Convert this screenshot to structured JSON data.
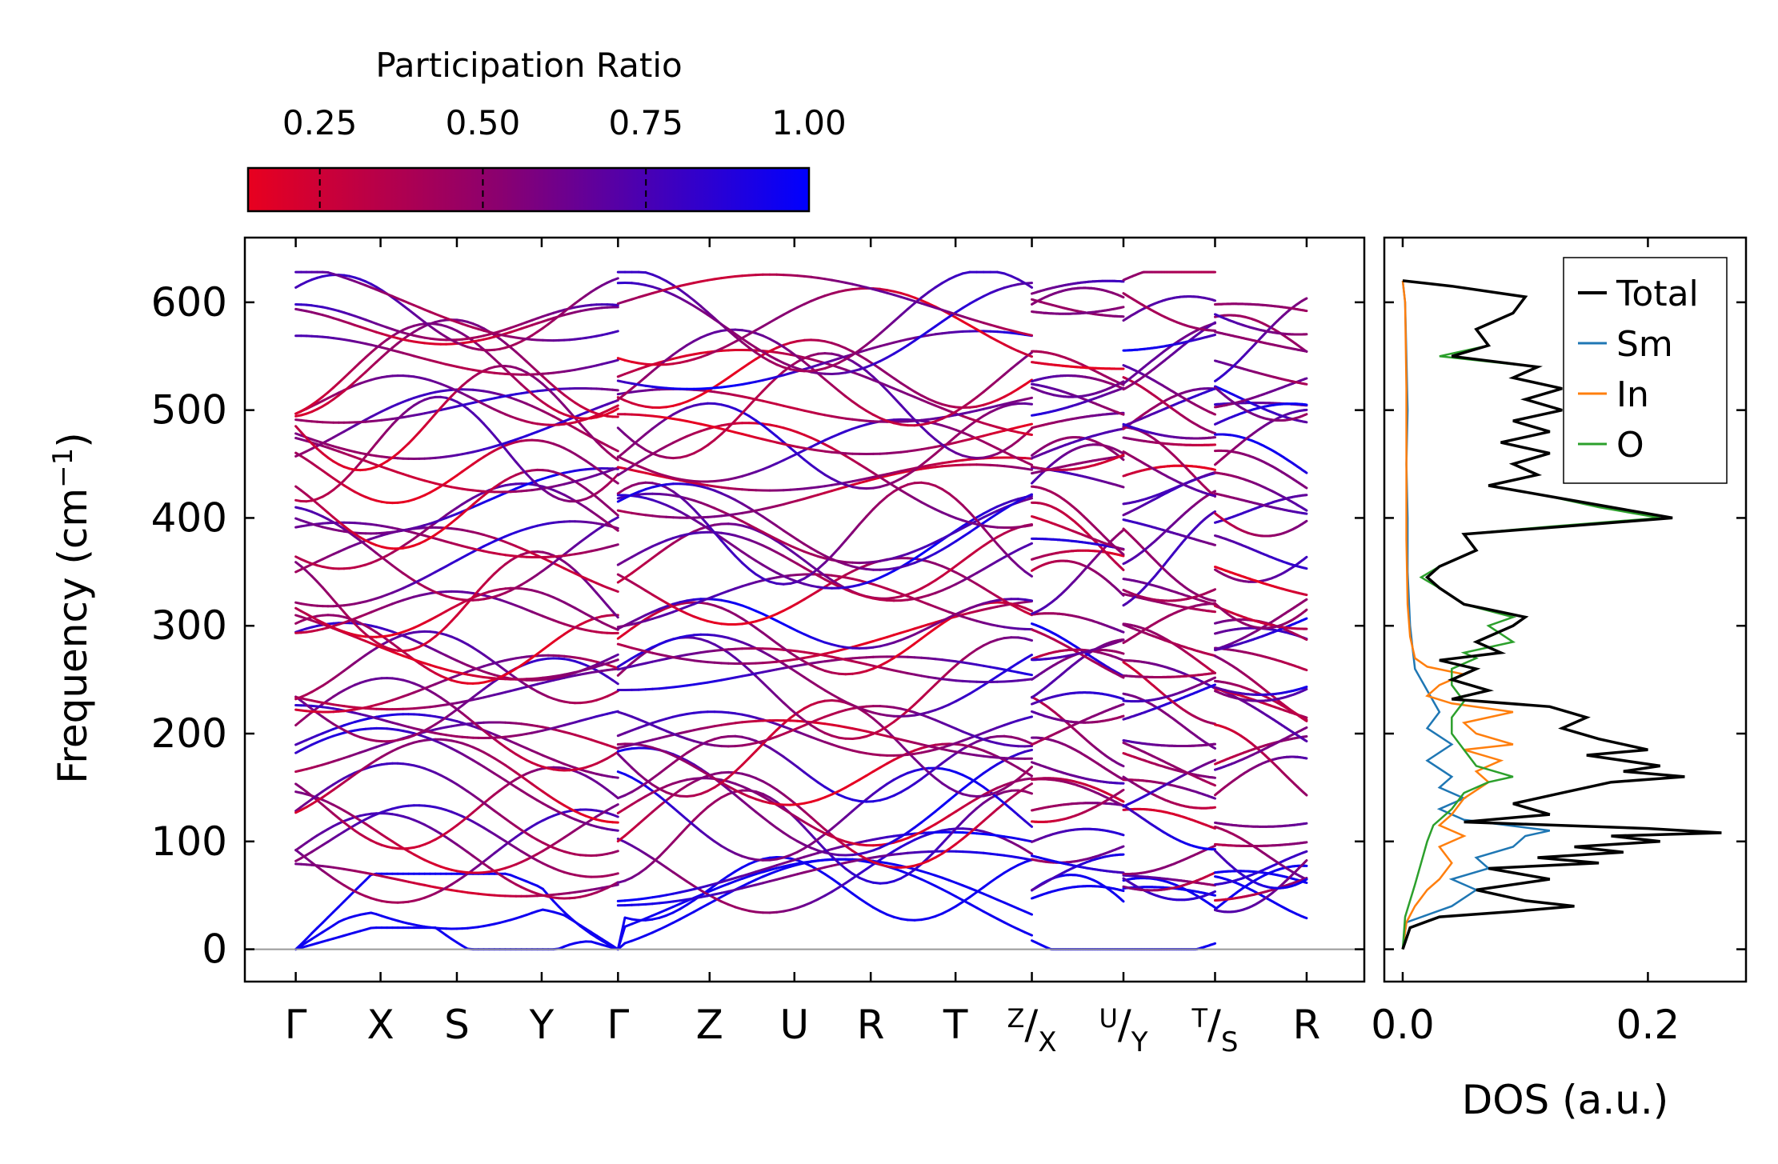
{
  "chart_data": [
    {
      "type": "line",
      "name": "phonon-band-structure",
      "ylabel_main": "Frequency (cm",
      "ylabel_sup": "−1",
      "ylabel_close": ")",
      "ylim": [
        -30,
        660
      ],
      "yticks": [
        0,
        100,
        200,
        300,
        400,
        500,
        600
      ],
      "kpath": [
        {
          "label": "Γ",
          "pos": 0.0
        },
        {
          "label": "X",
          "pos": 0.5
        },
        {
          "label": "S",
          "pos": 0.95
        },
        {
          "label": "Y",
          "pos": 1.45
        },
        {
          "label": "Γ",
          "pos": 1.9
        },
        {
          "label": "Z",
          "pos": 2.44
        },
        {
          "label": "U",
          "pos": 2.94
        },
        {
          "label": "R",
          "pos": 3.39
        },
        {
          "label": "T",
          "pos": 3.89
        },
        {
          "label": "Z",
          "label2": "X",
          "pos": 4.34
        },
        {
          "label": "U",
          "label2": "Y",
          "pos": 4.88
        },
        {
          "label": "T",
          "label2": "S",
          "pos": 5.42
        },
        {
          "label": "R",
          "pos": 5.96
        }
      ],
      "segment_breaks": [
        1.9,
        4.34,
        4.88,
        5.42
      ],
      "xlim": [
        -0.3,
        6.3
      ],
      "band_count": 48,
      "colorbar": {
        "title": "Participation Ratio",
        "ticks": [
          "0.25",
          "0.50",
          "0.75",
          "1.00"
        ],
        "tick_values": [
          0.25,
          0.5,
          0.75,
          1.0
        ],
        "range": [
          0.14,
          1.0
        ],
        "color_low": "#e8001f",
        "color_mid": "#8a0070",
        "color_high": "#0000ff"
      }
    },
    {
      "type": "line",
      "name": "density-of-states",
      "xlabel": "DOS (a.u.)",
      "xticks": [
        "0.0",
        "0.2"
      ],
      "xtick_values": [
        0.0,
        0.2
      ],
      "xlim": [
        -0.015,
        0.28
      ],
      "ylim": [
        -30,
        660
      ],
      "legend_position": "top-right",
      "series": [
        {
          "name": "Total",
          "color": "#000000",
          "points": [
            [
              0,
              0.0
            ],
            [
              20,
              0.006
            ],
            [
              30,
              0.03
            ],
            [
              35,
              0.09
            ],
            [
              40,
              0.14
            ],
            [
              45,
              0.1
            ],
            [
              55,
              0.06
            ],
            [
              65,
              0.12
            ],
            [
              75,
              0.07
            ],
            [
              80,
              0.16
            ],
            [
              85,
              0.11
            ],
            [
              90,
              0.18
            ],
            [
              95,
              0.14
            ],
            [
              100,
              0.21
            ],
            [
              105,
              0.17
            ],
            [
              108,
              0.26
            ],
            [
              112,
              0.2
            ],
            [
              118,
              0.05
            ],
            [
              125,
              0.12
            ],
            [
              135,
              0.09
            ],
            [
              145,
              0.13
            ],
            [
              155,
              0.17
            ],
            [
              160,
              0.23
            ],
            [
              165,
              0.18
            ],
            [
              170,
              0.21
            ],
            [
              180,
              0.15
            ],
            [
              185,
              0.2
            ],
            [
              195,
              0.16
            ],
            [
              205,
              0.13
            ],
            [
              215,
              0.15
            ],
            [
              225,
              0.12
            ],
            [
              232,
              0.04
            ],
            [
              240,
              0.07
            ],
            [
              250,
              0.04
            ],
            [
              260,
              0.06
            ],
            [
              268,
              0.03
            ],
            [
              275,
              0.08
            ],
            [
              285,
              0.06
            ],
            [
              300,
              0.09
            ],
            [
              308,
              0.1
            ],
            [
              320,
              0.05
            ],
            [
              335,
              0.03
            ],
            [
              345,
              0.02
            ],
            [
              355,
              0.03
            ],
            [
              370,
              0.06
            ],
            [
              385,
              0.05
            ],
            [
              392,
              0.13
            ],
            [
              400,
              0.22
            ],
            [
              410,
              0.17
            ],
            [
              420,
              0.12
            ],
            [
              430,
              0.07
            ],
            [
              440,
              0.11
            ],
            [
              450,
              0.09
            ],
            [
              460,
              0.12
            ],
            [
              470,
              0.08
            ],
            [
              480,
              0.12
            ],
            [
              490,
              0.09
            ],
            [
              500,
              0.13
            ],
            [
              510,
              0.1
            ],
            [
              520,
              0.13
            ],
            [
              530,
              0.09
            ],
            [
              540,
              0.11
            ],
            [
              550,
              0.04
            ],
            [
              560,
              0.07
            ],
            [
              575,
              0.06
            ],
            [
              590,
              0.09
            ],
            [
              605,
              0.1
            ],
            [
              615,
              0.04
            ],
            [
              620,
              0.0
            ]
          ]
        },
        {
          "name": "Sm",
          "color": "#1f77b4",
          "points": [
            [
              0,
              0.0
            ],
            [
              25,
              0.003
            ],
            [
              40,
              0.04
            ],
            [
              55,
              0.06
            ],
            [
              65,
              0.04
            ],
            [
              75,
              0.07
            ],
            [
              85,
              0.06
            ],
            [
              95,
              0.09
            ],
            [
              105,
              0.1
            ],
            [
              110,
              0.12
            ],
            [
              120,
              0.05
            ],
            [
              130,
              0.03
            ],
            [
              140,
              0.05
            ],
            [
              150,
              0.03
            ],
            [
              160,
              0.04
            ],
            [
              175,
              0.02
            ],
            [
              190,
              0.04
            ],
            [
              205,
              0.02
            ],
            [
              220,
              0.03
            ],
            [
              240,
              0.02
            ],
            [
              260,
              0.01
            ],
            [
              280,
              0.008
            ],
            [
              300,
              0.006
            ],
            [
              350,
              0.004
            ],
            [
              400,
              0.004
            ],
            [
              450,
              0.003
            ],
            [
              500,
              0.004
            ],
            [
              550,
              0.003
            ],
            [
              600,
              0.002
            ],
            [
              620,
              0.0
            ]
          ]
        },
        {
          "name": "In",
          "color": "#ff7f0e",
          "points": [
            [
              0,
              0.0
            ],
            [
              25,
              0.003
            ],
            [
              40,
              0.01
            ],
            [
              55,
              0.02
            ],
            [
              65,
              0.03
            ],
            [
              80,
              0.04
            ],
            [
              95,
              0.03
            ],
            [
              105,
              0.05
            ],
            [
              115,
              0.03
            ],
            [
              125,
              0.04
            ],
            [
              140,
              0.05
            ],
            [
              155,
              0.07
            ],
            [
              165,
              0.06
            ],
            [
              175,
              0.08
            ],
            [
              185,
              0.05
            ],
            [
              190,
              0.09
            ],
            [
              200,
              0.06
            ],
            [
              210,
              0.05
            ],
            [
              220,
              0.09
            ],
            [
              228,
              0.04
            ],
            [
              235,
              0.02
            ],
            [
              245,
              0.03
            ],
            [
              255,
              0.05
            ],
            [
              262,
              0.02
            ],
            [
              270,
              0.01
            ],
            [
              290,
              0.006
            ],
            [
              320,
              0.004
            ],
            [
              380,
              0.003
            ],
            [
              450,
              0.003
            ],
            [
              520,
              0.003
            ],
            [
              600,
              0.002
            ],
            [
              620,
              0.0
            ]
          ]
        },
        {
          "name": "O",
          "color": "#2ca02c",
          "points": [
            [
              0,
              0.0
            ],
            [
              30,
              0.002
            ],
            [
              60,
              0.01
            ],
            [
              80,
              0.015
            ],
            [
              100,
              0.02
            ],
            [
              115,
              0.025
            ],
            [
              130,
              0.04
            ],
            [
              145,
              0.05
            ],
            [
              155,
              0.07
            ],
            [
              160,
              0.09
            ],
            [
              170,
              0.06
            ],
            [
              185,
              0.05
            ],
            [
              200,
              0.04
            ],
            [
              215,
              0.04
            ],
            [
              230,
              0.05
            ],
            [
              245,
              0.04
            ],
            [
              260,
              0.04
            ],
            [
              270,
              0.06
            ],
            [
              275,
              0.05
            ],
            [
              285,
              0.09
            ],
            [
              300,
              0.07
            ],
            [
              308,
              0.09
            ],
            [
              320,
              0.05
            ],
            [
              335,
              0.03
            ],
            [
              345,
              0.015
            ],
            [
              355,
              0.03
            ],
            [
              370,
              0.06
            ],
            [
              385,
              0.05
            ],
            [
              392,
              0.12
            ],
            [
              400,
              0.21
            ],
            [
              410,
              0.16
            ],
            [
              420,
              0.12
            ],
            [
              430,
              0.07
            ],
            [
              440,
              0.11
            ],
            [
              450,
              0.09
            ],
            [
              460,
              0.12
            ],
            [
              470,
              0.08
            ],
            [
              480,
              0.12
            ],
            [
              490,
              0.09
            ],
            [
              500,
              0.13
            ],
            [
              510,
              0.1
            ],
            [
              520,
              0.13
            ],
            [
              530,
              0.09
            ],
            [
              540,
              0.11
            ],
            [
              550,
              0.03
            ],
            [
              560,
              0.07
            ],
            [
              575,
              0.06
            ],
            [
              590,
              0.09
            ],
            [
              605,
              0.1
            ],
            [
              615,
              0.04
            ],
            [
              620,
              0.0
            ]
          ]
        }
      ]
    }
  ]
}
